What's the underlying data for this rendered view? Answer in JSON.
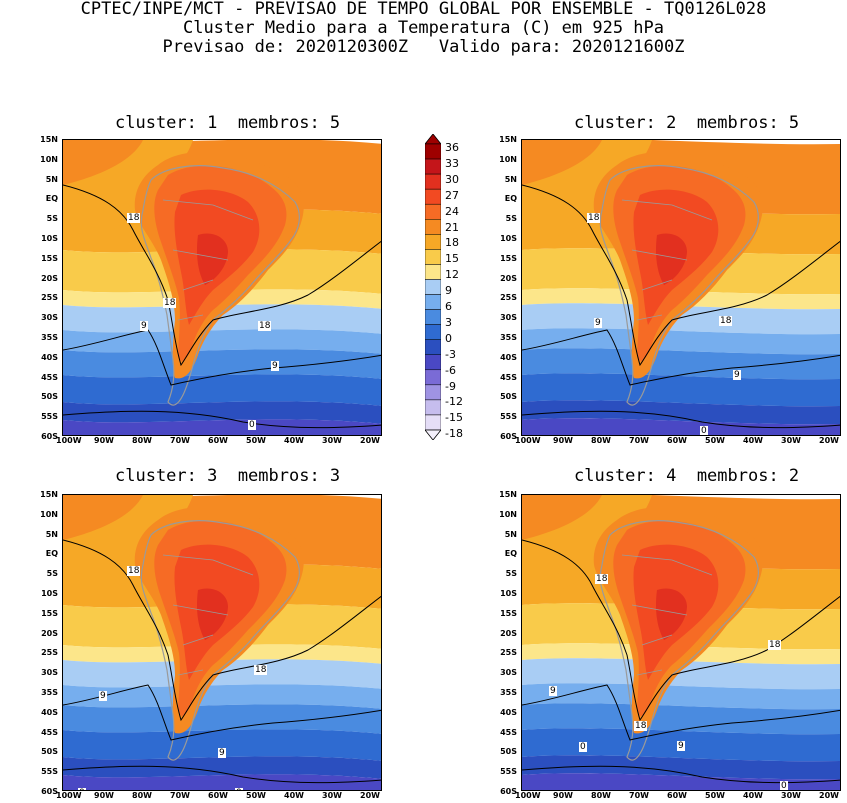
{
  "header": {
    "line1": "CPTEC/INPE/MCT - PREVISAO DE TEMPO GLOBAL POR ENSEMBLE - TQ0126L028",
    "line2": "Cluster Medio para a Temperatura (C) em 925 hPa",
    "line3": "Previsao de: 2020120300Z   Valido para: 2020121600Z"
  },
  "panels": [
    {
      "title": "cluster: 1  membros: 5",
      "labels": [
        "18",
        "18",
        "18",
        "9",
        "9",
        "0"
      ]
    },
    {
      "title": "cluster: 2  membros: 5",
      "labels": [
        "18",
        "18",
        "9",
        "9",
        "0"
      ]
    },
    {
      "title": "cluster: 3  membros: 3",
      "labels": [
        "18",
        "18",
        "9",
        "9",
        "0",
        "0"
      ]
    },
    {
      "title": "cluster: 4  membros: 2",
      "labels": [
        "18",
        "18",
        "18",
        "9",
        "9",
        "0",
        "0"
      ]
    }
  ],
  "axes": {
    "lat": [
      "15N",
      "10N",
      "5N",
      "EQ",
      "5S",
      "10S",
      "15S",
      "20S",
      "25S",
      "30S",
      "35S",
      "40S",
      "45S",
      "50S",
      "55S",
      "60S"
    ],
    "lon": [
      "100W",
      "90W",
      "80W",
      "70W",
      "60W",
      "50W",
      "40W",
      "30W",
      "20W"
    ]
  },
  "colorbar": {
    "labels": [
      "36",
      "33",
      "30",
      "27",
      "24",
      "21",
      "18",
      "15",
      "12",
      "9",
      "6",
      "3",
      "0",
      "-3",
      "-6",
      "-9",
      "-12",
      "-15",
      "-18"
    ],
    "colors": [
      "#9e0000",
      "#c4151a",
      "#e2301f",
      "#f24a22",
      "#f66b25",
      "#f58a22",
      "#f6a826",
      "#f9cb4a",
      "#fce68a",
      "#a9cdf4",
      "#76aeee",
      "#4a8be0",
      "#2f6bd1",
      "#2b4fbf",
      "#4a48c4",
      "#7a6bd6",
      "#9f93e3",
      "#c6bdee",
      "#e5def7"
    ]
  }
}
